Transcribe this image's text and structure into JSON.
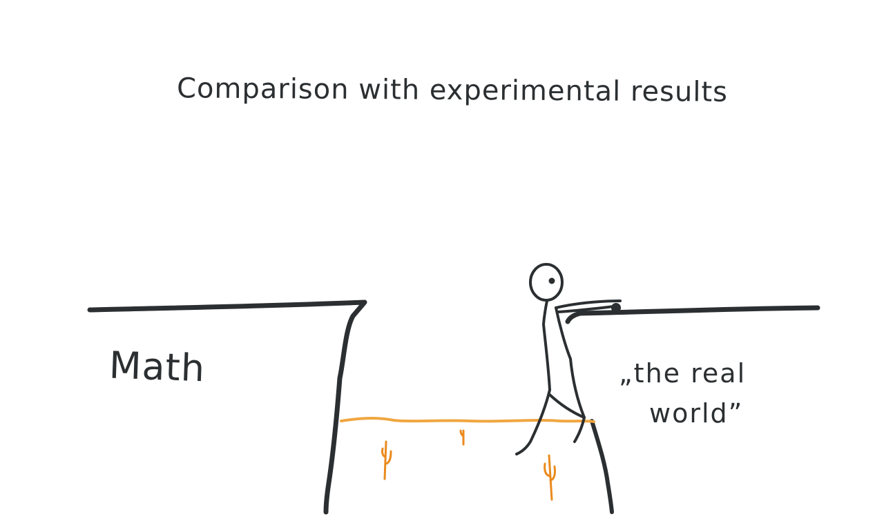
{
  "title": "Comparison with experimental results",
  "labels": {
    "left_side": "Math",
    "right_side_line1": "„the real",
    "right_side_line2": "world”"
  },
  "colors": {
    "ink": "#2b2f31",
    "sand": "#f0a640",
    "cactus": "#ea8a1e"
  }
}
